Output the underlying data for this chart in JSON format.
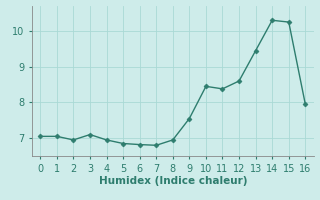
{
  "x": [
    0,
    1,
    2,
    3,
    4,
    5,
    6,
    7,
    8,
    9,
    10,
    11,
    12,
    13,
    14,
    15,
    16
  ],
  "y": [
    7.05,
    7.05,
    6.95,
    7.1,
    6.95,
    6.85,
    6.82,
    6.8,
    6.95,
    7.55,
    8.45,
    8.38,
    8.6,
    9.45,
    10.3,
    10.25,
    7.95
  ],
  "line_color": "#2e7d6e",
  "marker": "D",
  "marker_size": 2.5,
  "background_color": "#ceecea",
  "grid_color": "#aad9d5",
  "xlabel": "Humidex (Indice chaleur)",
  "ylabel": "",
  "xlim": [
    -0.5,
    16.5
  ],
  "ylim": [
    6.5,
    10.7
  ],
  "yticks": [
    7,
    8,
    9,
    10
  ],
  "xticks": [
    0,
    1,
    2,
    3,
    4,
    5,
    6,
    7,
    8,
    9,
    10,
    11,
    12,
    13,
    14,
    15,
    16
  ],
  "xlabel_fontsize": 7.5,
  "tick_fontsize": 7,
  "tick_color": "#2e7d6e",
  "spine_color": "#888888",
  "line_width": 1.0
}
